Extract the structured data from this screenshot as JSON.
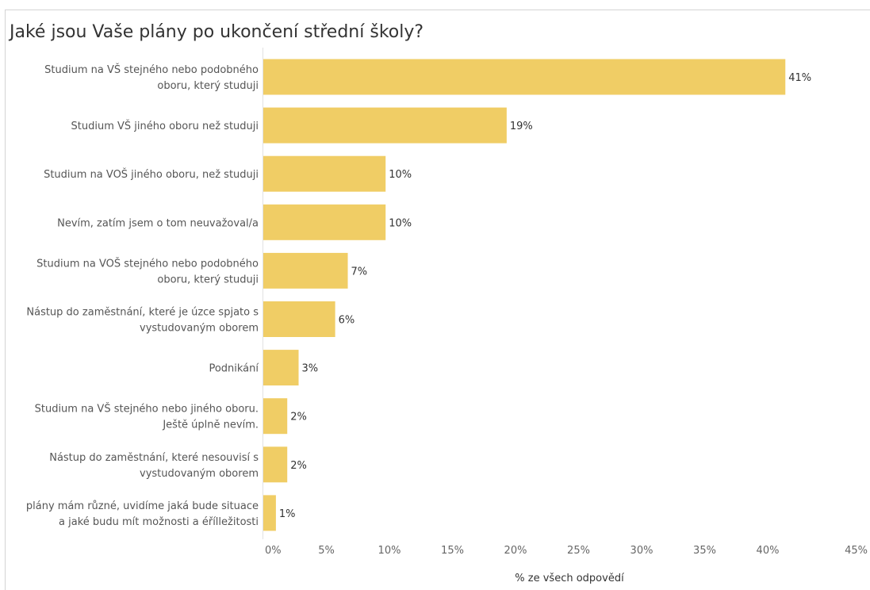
{
  "chart_data": {
    "type": "bar",
    "orientation": "horizontal",
    "title": "Jaké jsou Vaše plány po ukončení střední školy?",
    "xlabel": "% ze všech odpovědí",
    "ylabel": "",
    "xlim": [
      0,
      45
    ],
    "ticks": [
      "0%",
      "5%",
      "10%",
      "15%",
      "20%",
      "25%",
      "30%",
      "35%",
      "40%",
      "45%"
    ],
    "tick_values": [
      0,
      5,
      10,
      15,
      20,
      25,
      30,
      35,
      40,
      45
    ],
    "bar_color": "#f0cd65",
    "categories": [
      [
        "Studium na VŠ stejného nebo podobného",
        "oboru, který studuji"
      ],
      [
        "Studium VŠ jiného oboru než studuji"
      ],
      [
        "Studium na VOŠ jiného oboru, než studuji"
      ],
      [
        "Nevím, zatím jsem o tom neuvažoval/a"
      ],
      [
        "Studium na VOŠ stejného nebo podobného",
        "oboru, který studuji"
      ],
      [
        "Nástup do zaměstnání, které je úzce spjato s",
        "vystudovaným oborem"
      ],
      [
        "Podnikání"
      ],
      [
        "Studium na VŠ stejného nebo jiného oboru.",
        "Ještě úplně nevím."
      ],
      [
        "Nástup do zaměstnání, které nesouvisí s",
        "vystudovaným oborem"
      ],
      [
        "plány mám různé, uvidíme jaká bude situace",
        "a jaké budu mít možnosti a éřílležitosti"
      ]
    ],
    "values": [
      41.4,
      19.3,
      9.7,
      9.7,
      6.7,
      5.7,
      2.8,
      1.9,
      1.9,
      1.0
    ],
    "value_labels": [
      "41%",
      "19%",
      "10%",
      "10%",
      "7%",
      "6%",
      "3%",
      "2%",
      "2%",
      "1%"
    ],
    "grid": false,
    "legend": "none"
  }
}
